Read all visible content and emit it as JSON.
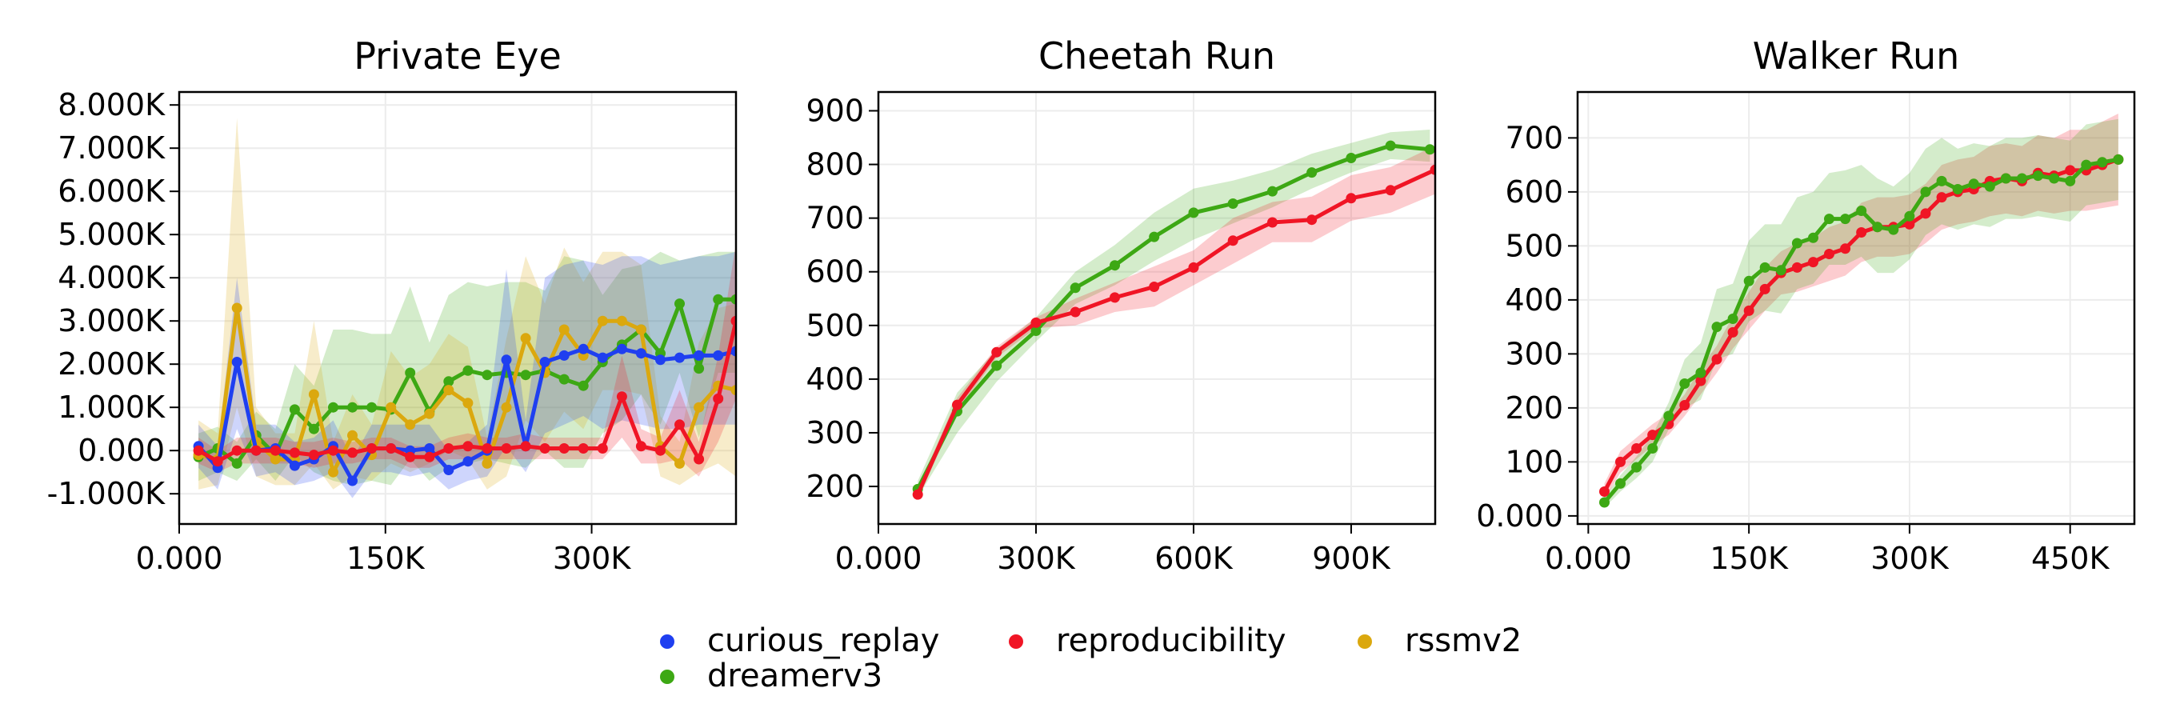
{
  "legend": [
    {
      "name": "curious_replay",
      "color": "#1f3ff0"
    },
    {
      "name": "reproducibility",
      "color": "#f01525"
    },
    {
      "name": "rssmv2",
      "color": "#dba80e"
    },
    {
      "name": "dreamerv3",
      "color": "#3da814"
    }
  ],
  "chart_data": [
    {
      "type": "line",
      "title": "Private Eye",
      "xlim": [
        0,
        405000
      ],
      "ylim": [
        -1700,
        8300
      ],
      "xticks": [
        0,
        150000,
        300000
      ],
      "xtick_labels": [
        "0.000",
        "150K",
        "300K"
      ],
      "yticks": [
        -1000,
        0,
        1000,
        2000,
        3000,
        4000,
        5000,
        6000,
        7000,
        8000
      ],
      "ytick_labels": [
        "-1.000K",
        "0.000",
        "1.000K",
        "2.000K",
        "3.000K",
        "4.000K",
        "5.000K",
        "6.000K",
        "7.000K",
        "8.000K"
      ],
      "grid": true,
      "series": [
        {
          "name": "dreamerv3",
          "x": [
            14000,
            28000,
            42000,
            56000,
            70000,
            84000,
            98000,
            112000,
            126000,
            140000,
            154000,
            168000,
            182000,
            196000,
            210000,
            224000,
            238000,
            252000,
            266000,
            280000,
            294000,
            308000,
            322000,
            336000,
            350000,
            364000,
            378000,
            392000,
            405000
          ],
          "y": [
            -150,
            50,
            -300,
            350,
            -100,
            950,
            500,
            1000,
            1000,
            1000,
            950,
            1800,
            900,
            1600,
            1850,
            1750,
            1800,
            1750,
            1850,
            1650,
            1500,
            2050,
            2450,
            2800,
            2250,
            3400,
            1900,
            3500,
            3500
          ],
          "lower": [
            -700,
            -500,
            -700,
            -200,
            -700,
            -100,
            -500,
            -700,
            -800,
            -700,
            -800,
            -200,
            -700,
            -400,
            -300,
            -200,
            -300,
            -400,
            0,
            -400,
            -400,
            400,
            700,
            1300,
            600,
            1800,
            300,
            1800,
            1800
          ],
          "upper": [
            400,
            550,
            200,
            900,
            500,
            2000,
            1500,
            2800,
            2800,
            2700,
            2700,
            3800,
            2500,
            3600,
            3900,
            3800,
            3900,
            3900,
            3700,
            4500,
            4400,
            3600,
            4200,
            4300,
            4600,
            4400,
            4500,
            4600,
            4600
          ]
        },
        {
          "name": "rssmv2",
          "x": [
            14000,
            28000,
            42000,
            56000,
            70000,
            84000,
            98000,
            112000,
            126000,
            140000,
            154000,
            168000,
            182000,
            196000,
            210000,
            224000,
            238000,
            252000,
            266000,
            280000,
            294000,
            308000,
            322000,
            336000,
            350000,
            364000,
            378000,
            392000,
            405000
          ],
          "y": [
            -100,
            -200,
            3300,
            200,
            -200,
            -200,
            1300,
            -500,
            350,
            -100,
            1000,
            600,
            850,
            1400,
            1100,
            -300,
            1000,
            2600,
            1800,
            2800,
            2200,
            3000,
            3000,
            2800,
            100,
            -300,
            1000,
            1500,
            1400
          ],
          "lower": [
            -900,
            -800,
            1000,
            -600,
            -800,
            -800,
            -300,
            -900,
            -600,
            -700,
            -300,
            -500,
            -300,
            0,
            -200,
            -900,
            -600,
            700,
            200,
            900,
            500,
            1400,
            1400,
            1300,
            -600,
            -800,
            -500,
            -300,
            -600
          ],
          "upper": [
            700,
            400,
            7700,
            1000,
            400,
            400,
            3000,
            200,
            1300,
            600,
            2300,
            1700,
            2000,
            2700,
            2400,
            300,
            2600,
            4500,
            3400,
            4700,
            3900,
            4600,
            4600,
            4300,
            800,
            200,
            2500,
            3300,
            3400
          ]
        },
        {
          "name": "curious_replay",
          "x": [
            14000,
            28000,
            42000,
            56000,
            70000,
            84000,
            98000,
            112000,
            126000,
            140000,
            154000,
            168000,
            182000,
            196000,
            210000,
            224000,
            238000,
            252000,
            266000,
            280000,
            294000,
            308000,
            322000,
            336000,
            350000,
            364000,
            378000,
            392000,
            405000
          ],
          "y": [
            100,
            -400,
            2050,
            0,
            50,
            -350,
            -200,
            100,
            -700,
            50,
            50,
            0,
            50,
            -450,
            -250,
            0,
            2100,
            100,
            2050,
            2200,
            2350,
            2150,
            2350,
            2250,
            2100,
            2150,
            2200,
            2200,
            2300
          ],
          "lower": [
            -400,
            -900,
            500,
            -600,
            -500,
            -800,
            -700,
            -500,
            -1100,
            -500,
            -500,
            -600,
            -500,
            -900,
            -700,
            -600,
            100,
            -500,
            400,
            600,
            800,
            500,
            700,
            600,
            500,
            500,
            600,
            600,
            600
          ],
          "upper": [
            600,
            100,
            4000,
            600,
            600,
            200,
            300,
            700,
            -200,
            600,
            600,
            600,
            600,
            0,
            200,
            600,
            4200,
            700,
            4000,
            4300,
            4400,
            4300,
            4500,
            4500,
            4300,
            4400,
            4500,
            4500,
            4600
          ]
        },
        {
          "name": "reproducibility",
          "x": [
            14000,
            28000,
            42000,
            56000,
            70000,
            84000,
            98000,
            112000,
            126000,
            140000,
            154000,
            168000,
            182000,
            196000,
            210000,
            224000,
            238000,
            252000,
            266000,
            280000,
            294000,
            308000,
            322000,
            336000,
            350000,
            364000,
            378000,
            392000,
            405000
          ],
          "y": [
            0,
            -250,
            0,
            0,
            0,
            -50,
            -100,
            0,
            -50,
            50,
            50,
            -150,
            -150,
            50,
            100,
            50,
            50,
            100,
            50,
            50,
            50,
            50,
            1250,
            100,
            0,
            600,
            -200,
            1200,
            3000
          ],
          "lower": [
            -300,
            -500,
            -300,
            -300,
            -300,
            -300,
            -400,
            -300,
            -300,
            -200,
            -200,
            -400,
            -400,
            -200,
            -200,
            -200,
            -200,
            -200,
            -200,
            -200,
            -200,
            -200,
            300,
            -300,
            -300,
            -200,
            -600,
            200,
            1200
          ],
          "upper": [
            300,
            0,
            300,
            300,
            300,
            200,
            200,
            300,
            200,
            300,
            300,
            100,
            100,
            300,
            400,
            300,
            300,
            400,
            300,
            300,
            300,
            300,
            2200,
            500,
            300,
            1400,
            200,
            2200,
            4800
          ]
        }
      ]
    },
    {
      "type": "line",
      "title": "Cheetah Run",
      "xlim": [
        0,
        1060000
      ],
      "ylim": [
        130,
        935
      ],
      "xticks": [
        0,
        300000,
        600000,
        900000
      ],
      "xtick_labels": [
        "0.000",
        "300K",
        "600K",
        "900K"
      ],
      "yticks": [
        200,
        300,
        400,
        500,
        600,
        700,
        800,
        900
      ],
      "ytick_labels": [
        "200",
        "300",
        "400",
        "500",
        "600",
        "700",
        "800",
        "900"
      ],
      "grid": true,
      "series": [
        {
          "name": "dreamerv3",
          "x": [
            75000,
            150000,
            225000,
            300000,
            375000,
            450000,
            525000,
            600000,
            675000,
            750000,
            825000,
            900000,
            975000,
            1050000
          ],
          "y": [
            195,
            340,
            425,
            490,
            570,
            612,
            665,
            710,
            727,
            750,
            785,
            812,
            835,
            828
          ],
          "lower": [
            180,
            300,
            395,
            470,
            540,
            575,
            620,
            660,
            690,
            720,
            755,
            785,
            810,
            805
          ],
          "upper": [
            210,
            375,
            455,
            515,
            600,
            650,
            710,
            755,
            770,
            790,
            820,
            840,
            860,
            865
          ]
        },
        {
          "name": "reproducibility",
          "x": [
            75000,
            150000,
            225000,
            300000,
            375000,
            450000,
            525000,
            600000,
            675000,
            750000,
            825000,
            900000,
            975000,
            1060000
          ],
          "y": [
            185,
            352,
            450,
            505,
            525,
            552,
            572,
            608,
            658,
            692,
            697,
            737,
            752,
            790
          ],
          "lower": [
            175,
            340,
            440,
            495,
            500,
            525,
            535,
            575,
            615,
            655,
            655,
            695,
            710,
            745
          ],
          "upper": [
            195,
            365,
            460,
            515,
            550,
            580,
            610,
            640,
            700,
            730,
            740,
            780,
            795,
            835
          ]
        }
      ]
    },
    {
      "type": "line",
      "title": "Walker Run",
      "xlim": [
        -10000,
        510000
      ],
      "ylim": [
        -15,
        785
      ],
      "xticks": [
        0,
        150000,
        300000,
        450000
      ],
      "xtick_labels": [
        "0.000",
        "150K",
        "300K",
        "450K"
      ],
      "yticks": [
        0,
        100,
        200,
        300,
        400,
        500,
        600,
        700
      ],
      "ytick_labels": [
        "0.000",
        "100",
        "200",
        "300",
        "400",
        "500",
        "600",
        "700"
      ],
      "grid": true,
      "series": [
        {
          "name": "reproducibility",
          "x": [
            15000,
            30000,
            45000,
            60000,
            75000,
            90000,
            105000,
            120000,
            135000,
            150000,
            165000,
            180000,
            195000,
            210000,
            225000,
            240000,
            255000,
            270000,
            285000,
            300000,
            315000,
            330000,
            345000,
            360000,
            375000,
            390000,
            405000,
            420000,
            435000,
            450000,
            465000,
            480000,
            495000
          ],
          "y": [
            45,
            100,
            125,
            150,
            170,
            205,
            250,
            290,
            340,
            380,
            420,
            450,
            460,
            470,
            485,
            495,
            525,
            535,
            535,
            540,
            560,
            590,
            600,
            605,
            620,
            625,
            620,
            635,
            630,
            640,
            640,
            650,
            660
          ],
          "lower": [
            30,
            80,
            105,
            130,
            150,
            185,
            225,
            265,
            310,
            345,
            380,
            410,
            415,
            425,
            435,
            445,
            470,
            480,
            480,
            485,
            505,
            530,
            540,
            545,
            555,
            560,
            555,
            565,
            560,
            565,
            565,
            570,
            575
          ],
          "upper": [
            60,
            120,
            145,
            170,
            190,
            225,
            275,
            315,
            370,
            415,
            460,
            490,
            505,
            515,
            535,
            545,
            580,
            590,
            590,
            595,
            615,
            650,
            660,
            665,
            685,
            690,
            685,
            705,
            700,
            715,
            715,
            730,
            745
          ]
        },
        {
          "name": "dreamerv3",
          "x": [
            15000,
            30000,
            45000,
            60000,
            75000,
            90000,
            105000,
            120000,
            135000,
            150000,
            165000,
            180000,
            195000,
            210000,
            225000,
            240000,
            255000,
            270000,
            285000,
            300000,
            315000,
            330000,
            345000,
            360000,
            375000,
            390000,
            405000,
            420000,
            435000,
            450000,
            465000,
            480000,
            495000
          ],
          "y": [
            25,
            60,
            90,
            125,
            185,
            245,
            265,
            350,
            365,
            435,
            460,
            455,
            505,
            515,
            550,
            550,
            565,
            535,
            530,
            555,
            600,
            620,
            605,
            615,
            610,
            625,
            625,
            630,
            625,
            620,
            650,
            655,
            660
          ],
          "lower": [
            15,
            45,
            70,
            100,
            160,
            200,
            215,
            290,
            300,
            360,
            380,
            375,
            420,
            430,
            465,
            465,
            480,
            450,
            450,
            475,
            520,
            540,
            530,
            540,
            535,
            550,
            550,
            555,
            550,
            545,
            575,
            580,
            585
          ],
          "upper": [
            35,
            75,
            110,
            150,
            210,
            290,
            320,
            420,
            430,
            510,
            540,
            540,
            590,
            600,
            635,
            640,
            650,
            625,
            610,
            635,
            680,
            700,
            680,
            690,
            685,
            700,
            700,
            705,
            700,
            695,
            725,
            730,
            735
          ]
        }
      ]
    }
  ]
}
